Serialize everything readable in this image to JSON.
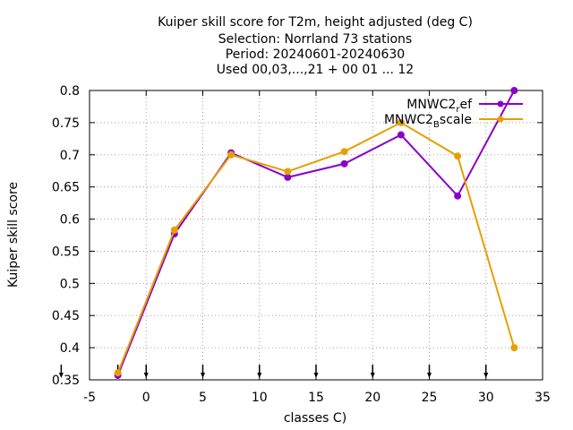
{
  "chart_data": {
    "type": "line",
    "title_lines": [
      "Kuiper skill score  for T2m, height adjusted (deg C)",
      "Selection: Norrland     73 stations",
      "Period: 20240601-20240630",
      "Used 00,03,...,21 + 00 01 ... 12"
    ],
    "xlabel": "classes C)",
    "ylabel": "Kuiper skill score",
    "xlim": [
      -5,
      35
    ],
    "ylim": [
      0.35,
      0.8
    ],
    "xticks": [
      "-5",
      "0",
      "5",
      "10",
      "15",
      "20",
      "25",
      "30",
      "35"
    ],
    "yticks": [
      "0.35",
      "0.4",
      "0.45",
      "0.5",
      "0.55",
      "0.6",
      "0.65",
      "0.7",
      "0.75",
      "0.8"
    ],
    "grid": true,
    "legend_position": "top-right",
    "class_markers_x": [
      -7.5,
      -2.5,
      0,
      5,
      10,
      15,
      20,
      25,
      30
    ],
    "series": [
      {
        "name_main": "MNWC2",
        "name_sub": "r",
        "name_tail": "ef",
        "color": "#8b00c8",
        "x": [
          -2.5,
          2.5,
          7.5,
          12.5,
          17.5,
          22.5,
          27.5,
          32.5
        ],
        "y": [
          0.357,
          0.577,
          0.703,
          0.665,
          0.686,
          0.731,
          0.636,
          0.8
        ]
      },
      {
        "name_main": "MNWC2",
        "name_sub": "B",
        "name_tail": "scale",
        "color": "#e69f00",
        "x": [
          -2.5,
          2.5,
          7.5,
          12.5,
          17.5,
          22.5,
          27.5,
          32.5
        ],
        "y": [
          0.361,
          0.583,
          0.7,
          0.674,
          0.705,
          0.75,
          0.698,
          0.4
        ]
      }
    ]
  }
}
